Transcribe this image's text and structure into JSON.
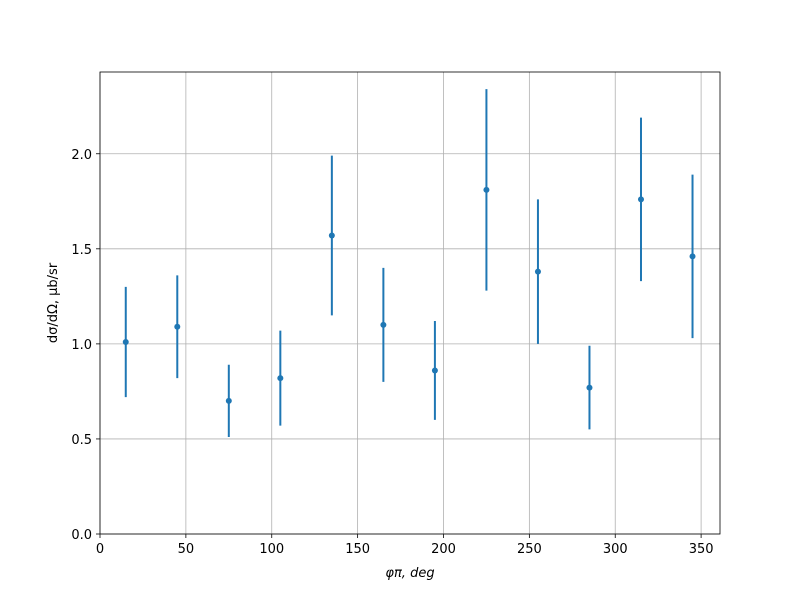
{
  "chart_data": {
    "type": "errorbar",
    "x_label": "φπ, deg",
    "y_label": "dσ/dΩ, μb/sr",
    "x": [
      15,
      45,
      75,
      105,
      135,
      165,
      195,
      225,
      255,
      285,
      315,
      345
    ],
    "series": [
      {
        "color": "#1f77b4",
        "values": [
          1.01,
          1.09,
          0.7,
          0.82,
          1.57,
          1.1,
          0.86,
          1.81,
          1.38,
          0.77,
          1.76,
          1.46
        ],
        "errors": [
          0.29,
          0.27,
          0.19,
          0.25,
          0.42,
          0.3,
          0.26,
          0.53,
          0.38,
          0.22,
          0.43,
          0.43
        ]
      }
    ],
    "xlim": [
      0,
      361
    ],
    "ylim": [
      0,
      2.43
    ],
    "xticks": [
      0,
      50,
      100,
      150,
      200,
      250,
      300,
      350
    ],
    "yticks": [
      {
        "value": 0,
        "label": "0.0"
      },
      {
        "value": 0.5,
        "label": "0.5"
      },
      {
        "value": 1,
        "label": "1.0"
      },
      {
        "value": 1.5,
        "label": "1.5"
      },
      {
        "value": 2,
        "label": "2.0"
      }
    ],
    "grid": true
  }
}
